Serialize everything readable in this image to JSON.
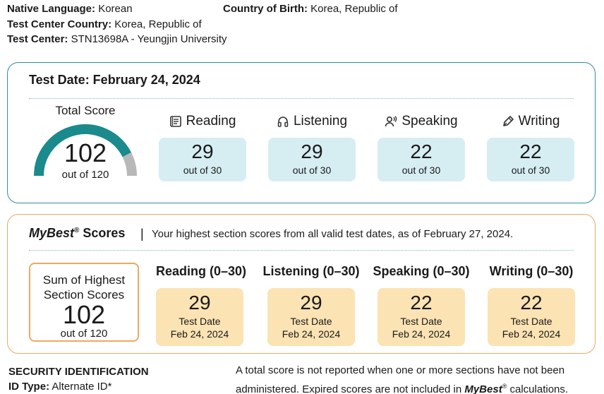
{
  "candidate": {
    "native_language_label": "Native Language:",
    "native_language_value": "Korean",
    "country_of_birth_label": "Country of Birth:",
    "country_of_birth_value": "Korea, Republic of",
    "test_center_country_label": "Test Center Country:",
    "test_center_country_value": "Korea, Republic of",
    "test_center_label": "Test Center:",
    "test_center_value": "STN13698A - Yeungjin University"
  },
  "test_date_card": {
    "title": "Test Date: February 24, 2024",
    "total_label": "Total Score",
    "total_score": "102",
    "total_max": "out of 120",
    "total_fraction": 0.85,
    "colors": {
      "accent": "#1a8a8c",
      "gauge_rest": "#b8b8b8",
      "box": "#d6eef2",
      "border": "#2e8fa0"
    },
    "sections": [
      {
        "name": "Reading",
        "icon": "book-icon",
        "score": "29",
        "max": "out of 30"
      },
      {
        "name": "Listening",
        "icon": "headphones-icon",
        "score": "29",
        "max": "out of 30"
      },
      {
        "name": "Speaking",
        "icon": "speaker-person-icon",
        "score": "22",
        "max": "out of 30"
      },
      {
        "name": "Writing",
        "icon": "pen-icon",
        "score": "22",
        "max": "out of 30"
      }
    ]
  },
  "mybest": {
    "title_em": "MyBest",
    "title_reg": "®",
    "title_rest": " Scores",
    "separator": "|",
    "description": "Your highest section scores from all valid test dates, as of February 27, 2024.",
    "sum_label_1": "Sum of Highest",
    "sum_label_2": "Section Scores",
    "sum_score": "102",
    "sum_max": "out of 120",
    "colors": {
      "border": "#f0a860",
      "box": "#fbe3b3"
    },
    "sections": [
      {
        "name": "Reading (0–30)",
        "score": "29",
        "date_label": "Test Date",
        "date": "Feb 24, 2024"
      },
      {
        "name": "Listening (0–30)",
        "score": "29",
        "date_label": "Test Date",
        "date": "Feb 24, 2024"
      },
      {
        "name": "Speaking (0–30)",
        "score": "22",
        "date_label": "Test Date",
        "date": "Feb 24, 2024"
      },
      {
        "name": "Writing (0–30)",
        "score": "22",
        "date_label": "Test Date",
        "date": "Feb 24, 2024"
      }
    ]
  },
  "footer": {
    "security_title": "SECURITY IDENTIFICATION",
    "id_type_label": "ID Type:",
    "id_type_value": "Alternate ID*",
    "note_1": "A total score is not reported when one or more sections have not been administered. Expired scores are not included in ",
    "note_em": "MyBest",
    "note_reg": "®",
    "note_2": " calculations."
  }
}
